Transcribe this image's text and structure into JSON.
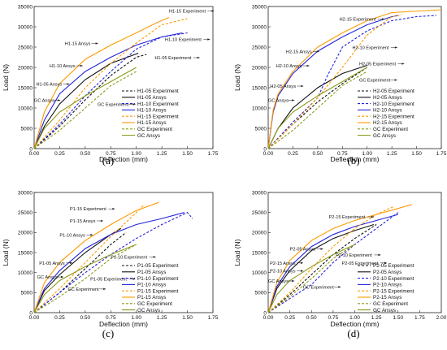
{
  "colors": {
    "black": "#111111",
    "blue": "#2222dd",
    "orange": "#ff9900",
    "olive": "#8a9a1a"
  },
  "chart_data": [
    {
      "type": "line",
      "caption": "(a)",
      "xlabel": "Deflection (mm)",
      "ylabel": "Load (N)",
      "xlim": [
        0,
        1.75
      ],
      "ylim": [
        0,
        35000
      ],
      "xticks": [
        "0.00",
        "0.25",
        "0.50",
        "0.75",
        "1.00",
        "1.25",
        "1.50",
        "1.75"
      ],
      "yticks": [
        "0",
        "5000",
        "10000",
        "15000",
        "20000",
        "25000",
        "30000",
        "35000"
      ],
      "series": [
        {
          "name": "H1-05 Experiment",
          "color": "black",
          "dash": true,
          "x": [
            0,
            0.25,
            0.5,
            0.75,
            1.0,
            1.1
          ],
          "y": [
            0,
            5500,
            12000,
            18000,
            22500,
            23200
          ]
        },
        {
          "name": "H1-05 Ansys",
          "color": "black",
          "dash": false,
          "x": [
            0,
            0.1,
            0.25,
            0.5,
            0.75,
            1.02
          ],
          "y": [
            0,
            5500,
            11000,
            17000,
            21000,
            23500
          ]
        },
        {
          "name": "H1-10 Experiment",
          "color": "blue",
          "dash": true,
          "x": [
            0,
            0.25,
            0.5,
            0.75,
            1.0,
            1.25,
            1.5
          ],
          "y": [
            0,
            6000,
            13000,
            19000,
            24500,
            27500,
            28500
          ]
        },
        {
          "name": "H1-10 Ansys",
          "color": "blue",
          "dash": false,
          "x": [
            0,
            0.1,
            0.25,
            0.5,
            0.75,
            1.0,
            1.25,
            1.45
          ],
          "y": [
            0,
            7000,
            13500,
            19000,
            22500,
            25500,
            27500,
            28500
          ]
        },
        {
          "name": "H1-15 Experiment",
          "color": "orange",
          "dash": true,
          "x": [
            0,
            0.25,
            0.5,
            0.75,
            1.0,
            1.25,
            1.5
          ],
          "y": [
            0,
            7000,
            15000,
            21000,
            26000,
            30500,
            32000
          ]
        },
        {
          "name": "H1-15 Ansys",
          "color": "orange",
          "dash": false,
          "x": [
            0,
            0.1,
            0.25,
            0.5,
            0.75,
            1.0,
            1.2,
            1.32
          ],
          "y": [
            0,
            9000,
            16000,
            22000,
            25500,
            28500,
            31000,
            32300
          ]
        },
        {
          "name": "GC Experiment",
          "color": "olive",
          "dash": true,
          "x": [
            0,
            0.25,
            0.5,
            0.75,
            1.0
          ],
          "y": [
            0,
            4500,
            10000,
            15500,
            19000
          ]
        },
        {
          "name": "GC Ansys",
          "color": "olive",
          "dash": false,
          "x": [
            0,
            0.1,
            0.25,
            0.5,
            0.75,
            1.0
          ],
          "y": [
            0,
            5000,
            9000,
            13000,
            16500,
            20000
          ]
        }
      ],
      "annotations": [
        {
          "text": "H1-15 Experiment",
          "x": 1.32,
          "y": 33500
        },
        {
          "text": "H1-10 Experiment",
          "x": 1.28,
          "y": 26500
        },
        {
          "text": "H1-15 Ansys",
          "x": 0.3,
          "y": 25500
        },
        {
          "text": "H1-10 Ansys",
          "x": 0.15,
          "y": 20000
        },
        {
          "text": "H1-05 Experiment",
          "x": 1.18,
          "y": 22000
        },
        {
          "text": "H1-05 Ansys",
          "x": 0.02,
          "y": 15500
        },
        {
          "text": "GC Ansys",
          "x": 0.0,
          "y": 11500
        },
        {
          "text": "GC Experiment",
          "x": 0.62,
          "y": 10500
        }
      ]
    },
    {
      "type": "line",
      "caption": "(b)",
      "xlabel": "Deflection (mm)",
      "ylabel": "Load (N)",
      "xlim": [
        0,
        1.75
      ],
      "ylim": [
        0,
        35000
      ],
      "xticks": [
        "0.00",
        "0.25",
        "0.50",
        "0.75",
        "1.00",
        "1.25",
        "1.50",
        "1.75"
      ],
      "yticks": [
        "0",
        "5000",
        "10000",
        "15000",
        "20000",
        "25000",
        "30000",
        "35000"
      ],
      "series": [
        {
          "name": "H2-05 Experiment",
          "color": "black",
          "dash": true,
          "x": [
            0,
            0.25,
            0.5,
            0.75,
            1.0
          ],
          "y": [
            0,
            6000,
            11500,
            16000,
            20000
          ]
        },
        {
          "name": "H2-05 Ansys",
          "color": "black",
          "dash": false,
          "x": [
            0,
            0.1,
            0.25,
            0.5,
            0.75,
            1.0
          ],
          "y": [
            0,
            5000,
            10000,
            15000,
            18500,
            20500
          ]
        },
        {
          "name": "H2-10 Experiment",
          "color": "blue",
          "dash": true,
          "x": [
            0,
            0.25,
            0.5,
            0.6,
            0.75,
            1.0,
            1.25,
            1.5,
            1.7
          ],
          "y": [
            0,
            6500,
            12500,
            18000,
            25000,
            29000,
            31500,
            32500,
            32800
          ]
        },
        {
          "name": "H2-10 Ansys",
          "color": "blue",
          "dash": false,
          "x": [
            0,
            0.05,
            0.1,
            0.25,
            0.5,
            0.75,
            1.0,
            1.25,
            1.32
          ],
          "y": [
            0,
            9000,
            13000,
            18500,
            24000,
            27500,
            30500,
            32500,
            32800
          ]
        },
        {
          "name": "H2-15 Experiment",
          "color": "orange",
          "dash": true,
          "x": [
            0,
            0.25,
            0.5,
            0.75,
            1.0,
            1.25,
            1.35
          ],
          "y": [
            0,
            6000,
            12500,
            20000,
            28000,
            32500,
            33000
          ]
        },
        {
          "name": "H2-15 Ansys",
          "color": "orange",
          "dash": false,
          "x": [
            0,
            0.05,
            0.1,
            0.25,
            0.5,
            0.75,
            1.0,
            1.25,
            1.75
          ],
          "y": [
            0,
            9500,
            13500,
            19000,
            25000,
            28500,
            31500,
            33500,
            34200
          ]
        },
        {
          "name": "GC Experiment",
          "color": "olive",
          "dash": true,
          "x": [
            0,
            0.25,
            0.5,
            0.75,
            1.0
          ],
          "y": [
            0,
            4500,
            10000,
            15500,
            19000
          ]
        },
        {
          "name": "GC Ansys",
          "color": "olive",
          "dash": false,
          "x": [
            0,
            0.1,
            0.25,
            0.5,
            0.75,
            1.0
          ],
          "y": [
            0,
            5000,
            9000,
            13000,
            16500,
            20000
          ]
        }
      ],
      "annotations": [
        {
          "text": "H2-15 Experiment",
          "x": 0.72,
          "y": 31500
        },
        {
          "text": "H2-15 Ansys",
          "x": 0.18,
          "y": 23500
        },
        {
          "text": "H2-10 Experiment",
          "x": 0.85,
          "y": 24500
        },
        {
          "text": "H2-10 Ansys",
          "x": 0.08,
          "y": 20000
        },
        {
          "text": "H2-05 Experiment",
          "x": 0.92,
          "y": 20500
        },
        {
          "text": "GC Experiment",
          "x": 0.92,
          "y": 16500
        },
        {
          "text": "H2-05 Ansys",
          "x": 0.02,
          "y": 15000
        },
        {
          "text": "GC Ansys",
          "x": 0.0,
          "y": 11500
        }
      ]
    },
    {
      "type": "line",
      "caption": "(c)",
      "xlabel": "Deflection (mm)",
      "ylabel": "Load (N)",
      "xlim": [
        0,
        1.75
      ],
      "ylim": [
        0,
        30000
      ],
      "xticks": [
        "0.00",
        "0.25",
        "0.50",
        "0.75",
        "1.00",
        "1.25",
        "1.50",
        "1.75"
      ],
      "yticks": [
        "0",
        "5000",
        "10000",
        "15000",
        "20000",
        "25000",
        "30000"
      ],
      "series": [
        {
          "name": "P1-05 Experiment",
          "color": "black",
          "dash": true,
          "x": [
            0,
            0.25,
            0.5,
            0.75,
            0.9
          ],
          "y": [
            0,
            5000,
            11000,
            17000,
            20000
          ]
        },
        {
          "name": "P1-05 Ansys",
          "color": "black",
          "dash": false,
          "x": [
            0,
            0.1,
            0.25,
            0.5,
            0.75,
            0.85
          ],
          "y": [
            0,
            5500,
            9500,
            15000,
            19500,
            21000
          ]
        },
        {
          "name": "P1-10 Experiment",
          "color": "blue",
          "dash": true,
          "x": [
            0,
            0.25,
            0.5,
            0.75,
            1.0,
            1.25,
            1.5,
            1.55
          ],
          "y": [
            0,
            5000,
            10000,
            14500,
            18500,
            22000,
            25000,
            23500
          ]
        },
        {
          "name": "P1-10 Ansys",
          "color": "blue",
          "dash": false,
          "x": [
            0,
            0.1,
            0.25,
            0.5,
            0.75,
            1.0,
            1.25,
            1.47
          ],
          "y": [
            0,
            6000,
            10500,
            16000,
            19500,
            22000,
            23500,
            25000
          ]
        },
        {
          "name": "P1-15 Experiment",
          "color": "orange",
          "dash": true,
          "x": [
            0,
            0.25,
            0.5,
            0.75,
            1.0,
            1.08
          ],
          "y": [
            0,
            6000,
            12500,
            19000,
            25000,
            27000
          ]
        },
        {
          "name": "P1-15 Ansys",
          "color": "orange",
          "dash": false,
          "x": [
            0,
            0.1,
            0.25,
            0.5,
            0.75,
            1.0,
            1.22
          ],
          "y": [
            0,
            7500,
            12500,
            18000,
            22000,
            25500,
            27500
          ]
        },
        {
          "name": "GC Experiment",
          "color": "olive",
          "dash": true,
          "x": [
            0,
            0.25,
            0.5,
            0.75,
            1.0
          ],
          "y": [
            0,
            4000,
            8500,
            13500,
            17000
          ]
        },
        {
          "name": "GC Ansys",
          "color": "olive",
          "dash": false,
          "x": [
            0,
            0.1,
            0.25,
            0.5,
            0.75,
            1.0
          ],
          "y": [
            0,
            4500,
            8000,
            11500,
            14500,
            17000
          ]
        }
      ],
      "annotations": [
        {
          "text": "P1-15 Experiment",
          "x": 0.35,
          "y": 25500
        },
        {
          "text": "P1-15 Ansys",
          "x": 0.35,
          "y": 22500
        },
        {
          "text": "P1-10 Ansys",
          "x": 0.25,
          "y": 19000
        },
        {
          "text": "P1-10 Experiment",
          "x": 0.75,
          "y": 13500
        },
        {
          "text": "P1-05 Ansys",
          "x": 0.05,
          "y": 12000
        },
        {
          "text": "P1-05 Experiment",
          "x": 0.55,
          "y": 8000
        },
        {
          "text": "GC Ansys",
          "x": 0.03,
          "y": 8500
        },
        {
          "text": "GC Experiment",
          "x": 0.33,
          "y": 5500
        }
      ]
    },
    {
      "type": "line",
      "caption": "(d)",
      "xlabel": "Deflection (mm)",
      "ylabel": "Load (N)",
      "xlim": [
        0,
        2.0
      ],
      "ylim": [
        0,
        30000
      ],
      "xticks": [
        "0.00",
        "0.25",
        "0.50",
        "0.75",
        "1.00",
        "1.25",
        "1.50",
        "1.75",
        "2.00"
      ],
      "yticks": [
        "0",
        "5000",
        "10000",
        "15000",
        "20000",
        "25000",
        "30000"
      ],
      "series": [
        {
          "name": "P2-05 Experiment",
          "color": "black",
          "dash": true,
          "x": [
            0,
            0.25,
            0.5,
            0.75,
            1.0,
            1.25
          ],
          "y": [
            0,
            4500,
            9500,
            14500,
            18500,
            22000
          ]
        },
        {
          "name": "P2-05 Ansys",
          "color": "black",
          "dash": false,
          "x": [
            0,
            0.1,
            0.25,
            0.5,
            0.75,
            1.0,
            1.22
          ],
          "y": [
            0,
            6000,
            10500,
            15500,
            18500,
            20500,
            22000
          ]
        },
        {
          "name": "P2-10 Experiment",
          "color": "blue",
          "dash": true,
          "x": [
            0,
            0.25,
            0.5,
            0.75,
            1.0,
            1.25,
            1.5
          ],
          "y": [
            0,
            3500,
            7000,
            12500,
            17000,
            21000,
            25000
          ]
        },
        {
          "name": "P2-10 Ansys",
          "color": "blue",
          "dash": false,
          "x": [
            0,
            0.1,
            0.25,
            0.5,
            0.75,
            1.0,
            1.25,
            1.5
          ],
          "y": [
            0,
            6500,
            11500,
            16500,
            19500,
            21500,
            23000,
            24500
          ]
        },
        {
          "name": "P2-15 Experiment",
          "color": "orange",
          "dash": true,
          "x": [
            0,
            0.25,
            0.5,
            0.75,
            1.0,
            1.25,
            1.45
          ],
          "y": [
            0,
            5000,
            11000,
            16500,
            21000,
            24500,
            26500
          ]
        },
        {
          "name": "P2-15 Ansys",
          "color": "orange",
          "dash": false,
          "x": [
            0,
            0.1,
            0.25,
            0.5,
            0.75,
            1.0,
            1.25,
            1.5,
            1.66
          ],
          "y": [
            0,
            7500,
            13000,
            18000,
            21000,
            23000,
            24500,
            26000,
            27000
          ]
        },
        {
          "name": "GC Experiment",
          "color": "olive",
          "dash": true,
          "x": [
            0,
            0.25,
            0.5,
            0.75,
            1.0
          ],
          "y": [
            0,
            4000,
            8500,
            13500,
            17000
          ]
        },
        {
          "name": "GC Ansys",
          "color": "olive",
          "dash": false,
          "x": [
            0,
            0.1,
            0.25,
            0.5,
            0.75,
            1.0
          ],
          "y": [
            0,
            4500,
            8000,
            11500,
            14500,
            17000
          ]
        }
      ],
      "annotations": [
        {
          "text": "P2-15 Experiment",
          "x": 0.7,
          "y": 23500
        },
        {
          "text": "P2-05 Ansys",
          "x": 0.25,
          "y": 15500
        },
        {
          "text": "P2-10 Experiment",
          "x": 0.78,
          "y": 14000
        },
        {
          "text": "P2-05 Experiment",
          "x": 0.85,
          "y": 12000
        },
        {
          "text": "P2-15 Ansys",
          "x": 0.02,
          "y": 12000
        },
        {
          "text": "P2-10 Ansys",
          "x": 0.02,
          "y": 10000
        },
        {
          "text": "GC Ansys",
          "x": 0.0,
          "y": 7500
        },
        {
          "text": "GC Experiment",
          "x": 0.4,
          "y": 6000
        }
      ]
    }
  ]
}
